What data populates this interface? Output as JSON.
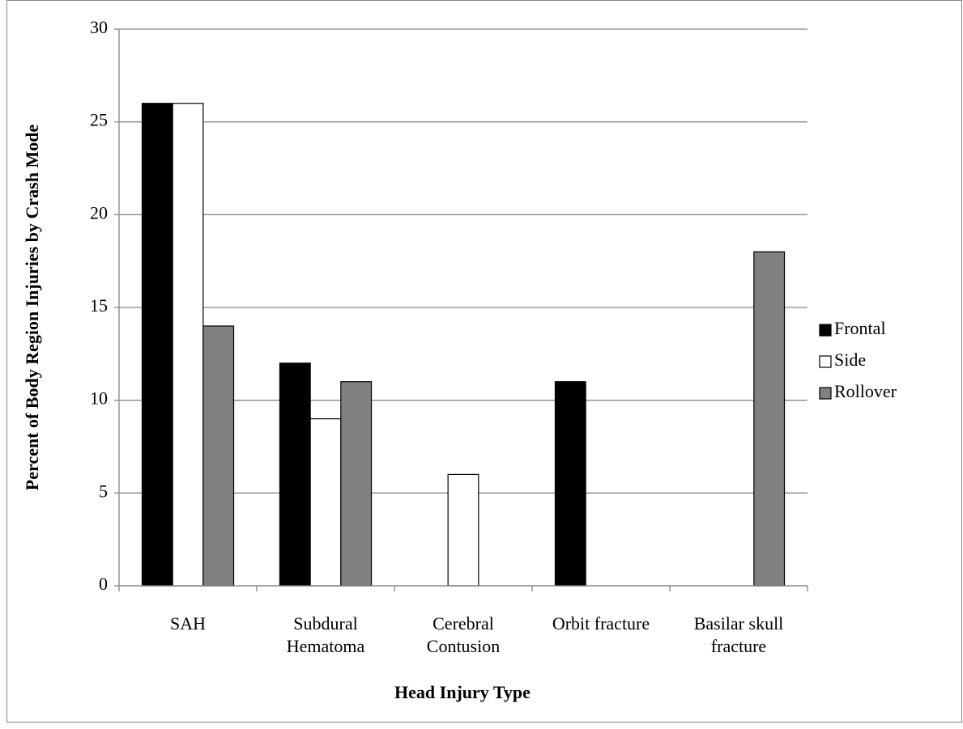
{
  "chart_data": {
    "type": "bar",
    "x_label": "Head Injury Type",
    "y_label": "Percent of Body Region Injuries by Crash Mode",
    "categories": [
      "SAH",
      "Subdural Hematoma",
      "Cerebral Contusion",
      "Orbit fracture",
      "Basilar skull fracture"
    ],
    "series": [
      {
        "name": "Frontal",
        "color": "#000000",
        "values": [
          26,
          12,
          0,
          11,
          0
        ]
      },
      {
        "name": "Side",
        "color": "#ffffff",
        "values": [
          26,
          9,
          6,
          0,
          0
        ]
      },
      {
        "name": "Rollover",
        "color": "#808080",
        "values": [
          14,
          11,
          0,
          0,
          18
        ]
      }
    ],
    "ylim": [
      0,
      30
    ],
    "yticks": [
      0,
      5,
      10,
      15,
      20,
      25,
      30
    ],
    "grid": true,
    "legend": "right"
  }
}
